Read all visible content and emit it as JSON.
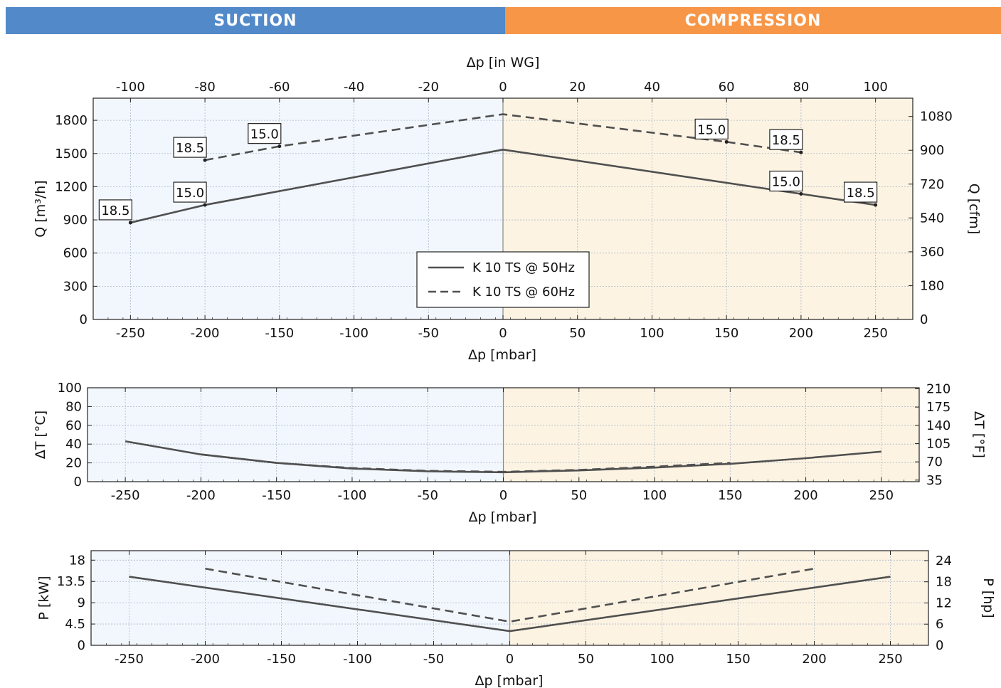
{
  "header": {
    "suction_label": "SUCTION",
    "compression_label": "COMPRESSION",
    "suction_color": "#5289c9",
    "compression_color": "#f79646"
  },
  "colors": {
    "suction_bg": "#f2f7fd",
    "compression_bg": "#fdf3e2",
    "line": "#505050",
    "grid": "#a9b8c8"
  },
  "chart_data": [
    {
      "type": "line",
      "id": "flow",
      "xlabel": "Δp [mbar]",
      "ylabel": "Q [m³/h]",
      "ylabel_right": "Q [cfm]",
      "xlabel_top": "Δp [in WG]",
      "xlim": [
        -275,
        275
      ],
      "ylim": [
        0,
        2000
      ],
      "x_ticks": [
        -250,
        -200,
        -150,
        -100,
        -50,
        0,
        50,
        100,
        150,
        200,
        250
      ],
      "y_ticks": [
        0,
        300,
        600,
        900,
        1200,
        1500,
        1800
      ],
      "y_right_ticks": [
        0,
        180,
        360,
        540,
        720,
        900,
        1080
      ],
      "x_top_ticks": [
        -100,
        -80,
        -60,
        -40,
        -20,
        0,
        20,
        40,
        60,
        80,
        100
      ],
      "grid": true,
      "legend": "center",
      "series": [
        {
          "name": "K 10 TS @ 50Hz",
          "style": "solid",
          "x": [
            -250,
            -200,
            0,
            200,
            250
          ],
          "y": [
            875,
            1035,
            1535,
            1135,
            1035
          ]
        },
        {
          "name": "K 10 TS @ 60Hz",
          "style": "dashed",
          "x": [
            -200,
            -150,
            0,
            150,
            200
          ],
          "y": [
            1440,
            1565,
            1855,
            1605,
            1510
          ]
        }
      ],
      "annotations": [
        {
          "text": "18.5",
          "x": -250,
          "y": 875
        },
        {
          "text": "15.0",
          "x": -200,
          "y": 1035
        },
        {
          "text": "18.5",
          "x": -200,
          "y": 1440
        },
        {
          "text": "15.0",
          "x": -150,
          "y": 1565
        },
        {
          "text": "15.0",
          "x": 150,
          "y": 1605
        },
        {
          "text": "18.5",
          "x": 200,
          "y": 1510
        },
        {
          "text": "15.0",
          "x": 200,
          "y": 1135
        },
        {
          "text": "18.5",
          "x": 250,
          "y": 1035
        }
      ]
    },
    {
      "type": "line",
      "id": "temperature",
      "xlabel": "Δp [mbar]",
      "ylabel": "ΔT [°C]",
      "ylabel_right": "ΔT [°F]",
      "xlim": [
        -275,
        275
      ],
      "ylim": [
        0,
        100
      ],
      "x_ticks": [
        -250,
        -200,
        -150,
        -100,
        -50,
        0,
        50,
        100,
        150,
        200,
        250
      ],
      "y_ticks": [
        0,
        20,
        40,
        60,
        80,
        100
      ],
      "y_right_ticks": [
        35,
        70,
        105,
        140,
        175,
        210
      ],
      "grid": true,
      "series": [
        {
          "name": "K 10 TS @ 50Hz",
          "style": "solid",
          "x": [
            -250,
            -200,
            -150,
            -100,
            -50,
            0,
            50,
            100,
            150,
            200,
            250
          ],
          "y": [
            43,
            29,
            20,
            14,
            11,
            10,
            12,
            15,
            19,
            25,
            32
          ]
        },
        {
          "name": "K 10 TS @ 60Hz",
          "style": "dashed",
          "x": [
            -200,
            -150,
            -100,
            -50,
            0,
            50,
            100,
            150
          ],
          "y": [
            29,
            20,
            14.5,
            11.5,
            10.5,
            12.5,
            16,
            20
          ]
        }
      ]
    },
    {
      "type": "line",
      "id": "power",
      "xlabel": "Δp [mbar]",
      "ylabel": "P [kW]",
      "ylabel_right": "P [hp]",
      "xlim": [
        -275,
        275
      ],
      "ylim": [
        0,
        20
      ],
      "x_ticks": [
        -250,
        -200,
        -150,
        -100,
        -50,
        0,
        50,
        100,
        150,
        200,
        250
      ],
      "y_ticks": [
        0,
        4.5,
        9,
        13.5,
        18
      ],
      "y_right_ticks": [
        0,
        6,
        12,
        18,
        24
      ],
      "grid": true,
      "series": [
        {
          "name": "K 10 TS @ 50Hz",
          "style": "solid",
          "x": [
            -250,
            0,
            250
          ],
          "y": [
            14.5,
            3,
            14.5
          ]
        },
        {
          "name": "K 10 TS @ 60Hz",
          "style": "dashed",
          "x": [
            -200,
            0,
            200
          ],
          "y": [
            16.2,
            5,
            16.2
          ]
        }
      ]
    }
  ]
}
